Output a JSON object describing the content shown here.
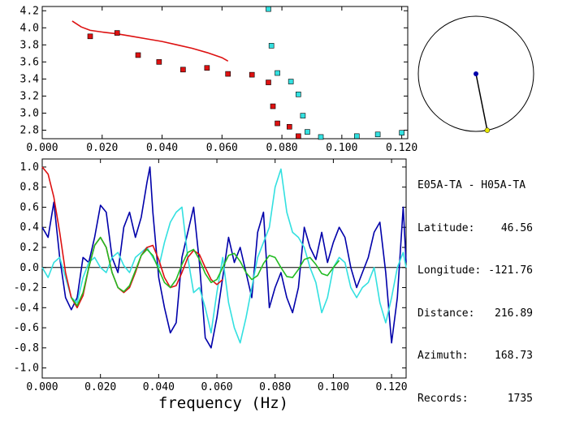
{
  "station": {
    "pair": "E05A-TA - H05A-TA",
    "fields": [
      {
        "label": "Latitude:",
        "value": "46.56"
      },
      {
        "label": "Longitude:",
        "value": "-121.76"
      },
      {
        "label": "Distance:",
        "value": "216.89"
      },
      {
        "label": "Azimuth:",
        "value": "168.73"
      },
      {
        "label": "Records:",
        "value": "1735"
      }
    ]
  },
  "colors": {
    "red": "#dd1111",
    "green": "#22bb22",
    "blue": "#0000aa",
    "cyan": "#33e0e0",
    "pivot": "#0000aa",
    "end": "#e6e600"
  },
  "azimuth_dial": {
    "azimuth_deg": 168.73
  },
  "chart_data": [
    {
      "type": "scatter",
      "title": "",
      "xlabel": "",
      "ylabel": "",
      "xlim": [
        0.0,
        0.122
      ],
      "ylim": [
        2.7,
        4.25
      ],
      "x_ticks": [
        "0.000",
        "0.020",
        "0.040",
        "0.060",
        "0.080",
        "0.100",
        "0.120"
      ],
      "x_tick_values": [
        0.0,
        0.02,
        0.04,
        0.06,
        0.08,
        0.1,
        0.12
      ],
      "y_ticks": [
        "2.8",
        "3.0",
        "3.2",
        "3.4",
        "3.6",
        "3.8",
        "4.0",
        "4.2"
      ],
      "y_tick_values": [
        2.8,
        3.0,
        3.2,
        3.4,
        3.6,
        3.8,
        4.0,
        4.2
      ],
      "series": [
        {
          "kind": "line",
          "color_key": "red",
          "x": [
            0.01,
            0.013,
            0.016,
            0.02,
            0.025,
            0.03,
            0.035,
            0.04,
            0.045,
            0.05,
            0.055,
            0.06,
            0.062
          ],
          "y": [
            4.08,
            4.01,
            3.97,
            3.95,
            3.93,
            3.9,
            3.87,
            3.84,
            3.8,
            3.76,
            3.71,
            3.65,
            3.61
          ]
        },
        {
          "kind": "markers",
          "color_key": "red",
          "x": [
            0.016,
            0.025,
            0.032,
            0.039,
            0.047,
            0.055,
            0.062,
            0.07,
            0.0755,
            0.077,
            0.0785,
            0.0825,
            0.0855
          ],
          "y": [
            3.9,
            3.94,
            3.68,
            3.6,
            3.51,
            3.53,
            3.46,
            3.45,
            3.36,
            3.08,
            2.88,
            2.84,
            2.73
          ]
        },
        {
          "kind": "markers",
          "color_key": "cyan",
          "x": [
            0.0755,
            0.0765,
            0.0785,
            0.083,
            0.0855,
            0.087,
            0.0885,
            0.093,
            0.105,
            0.112,
            0.12
          ],
          "y": [
            4.22,
            3.79,
            3.47,
            3.37,
            3.22,
            2.97,
            2.78,
            2.72,
            2.73,
            2.75,
            2.77
          ]
        }
      ]
    },
    {
      "type": "line",
      "title": "",
      "xlabel": "frequency (Hz)",
      "ylabel": "",
      "xlim": [
        0.0,
        0.125
      ],
      "ylim": [
        -1.1,
        1.08
      ],
      "x_ticks": [
        "0.000",
        "0.020",
        "0.040",
        "0.060",
        "0.080",
        "0.100",
        "0.120"
      ],
      "x_tick_values": [
        0.0,
        0.02,
        0.04,
        0.06,
        0.08,
        0.1,
        0.12
      ],
      "y_ticks": [
        "1.0",
        "0.8",
        "0.6",
        "0.4",
        "0.2",
        "0.0",
        "-0.2",
        "-0.4",
        "-0.6",
        "-0.8",
        "-1.0"
      ],
      "y_tick_values": [
        1.0,
        0.8,
        0.6,
        0.4,
        0.2,
        0.0,
        -0.2,
        -0.4,
        -0.6,
        -0.8,
        -1.0
      ],
      "zero_line": true,
      "series": [
        {
          "color_key": "blue",
          "x": [
            0.0,
            0.002,
            0.004,
            0.006,
            0.008,
            0.01,
            0.012,
            0.014,
            0.016,
            0.018,
            0.02,
            0.022,
            0.024,
            0.026,
            0.028,
            0.03,
            0.032,
            0.034,
            0.036,
            0.037,
            0.038,
            0.04,
            0.042,
            0.044,
            0.046,
            0.048,
            0.05,
            0.052,
            0.054,
            0.056,
            0.058,
            0.06,
            0.062,
            0.064,
            0.066,
            0.068,
            0.07,
            0.072,
            0.074,
            0.076,
            0.078,
            0.08,
            0.082,
            0.084,
            0.086,
            0.088,
            0.09,
            0.092,
            0.094,
            0.096,
            0.098,
            0.1,
            0.102,
            0.104,
            0.106,
            0.108,
            0.11,
            0.112,
            0.114,
            0.116,
            0.118,
            0.12,
            0.122,
            0.124,
            0.125
          ],
          "y": [
            0.4,
            0.3,
            0.65,
            0.1,
            -0.3,
            -0.42,
            -0.3,
            0.1,
            0.05,
            0.3,
            0.62,
            0.55,
            0.1,
            -0.05,
            0.4,
            0.55,
            0.3,
            0.5,
            0.85,
            1.0,
            0.55,
            -0.1,
            -0.4,
            -0.65,
            -0.55,
            0.1,
            0.35,
            0.6,
            0.05,
            -0.7,
            -0.8,
            -0.5,
            -0.1,
            0.3,
            0.05,
            0.2,
            -0.05,
            -0.3,
            0.35,
            0.55,
            -0.4,
            -0.2,
            -0.05,
            -0.3,
            -0.45,
            -0.2,
            0.4,
            0.2,
            0.08,
            0.35,
            0.05,
            0.25,
            0.4,
            0.3,
            0.0,
            -0.2,
            -0.05,
            0.1,
            0.35,
            0.45,
            -0.05,
            -0.75,
            -0.3,
            0.6,
            0.05
          ]
        },
        {
          "color_key": "cyan",
          "x": [
            0.0,
            0.002,
            0.004,
            0.006,
            0.008,
            0.01,
            0.012,
            0.014,
            0.016,
            0.018,
            0.02,
            0.022,
            0.024,
            0.026,
            0.028,
            0.03,
            0.032,
            0.034,
            0.036,
            0.038,
            0.04,
            0.042,
            0.044,
            0.046,
            0.048,
            0.05,
            0.052,
            0.054,
            0.056,
            0.058,
            0.06,
            0.062,
            0.064,
            0.066,
            0.068,
            0.07,
            0.072,
            0.074,
            0.076,
            0.078,
            0.08,
            0.082,
            0.084,
            0.086,
            0.088,
            0.09,
            0.092,
            0.094,
            0.096,
            0.098,
            0.1,
            0.102,
            0.104,
            0.106,
            0.108,
            0.11,
            0.112,
            0.114,
            0.116,
            0.118,
            0.12,
            0.122,
            0.124,
            0.125
          ],
          "y": [
            0.0,
            -0.1,
            0.05,
            0.1,
            -0.1,
            -0.3,
            -0.35,
            -0.1,
            0.05,
            0.1,
            0.0,
            -0.05,
            0.1,
            0.15,
            0.02,
            -0.05,
            0.1,
            0.15,
            0.2,
            0.1,
            0.0,
            0.25,
            0.45,
            0.55,
            0.6,
            0.1,
            -0.25,
            -0.2,
            -0.4,
            -0.65,
            -0.25,
            0.1,
            -0.35,
            -0.6,
            -0.75,
            -0.5,
            -0.2,
            0.1,
            0.25,
            0.4,
            0.8,
            0.98,
            0.55,
            0.35,
            0.3,
            0.2,
            0.0,
            -0.15,
            -0.45,
            -0.3,
            0.0,
            0.1,
            0.05,
            -0.2,
            -0.3,
            -0.2,
            -0.15,
            0.0,
            -0.35,
            -0.55,
            -0.3,
            0.0,
            0.15,
            0.0
          ]
        },
        {
          "color_key": "red",
          "x": [
            0.0,
            0.002,
            0.004,
            0.006,
            0.008,
            0.01,
            0.012,
            0.014,
            0.016,
            0.018,
            0.02,
            0.022,
            0.024,
            0.026,
            0.028,
            0.03,
            0.032,
            0.034,
            0.036,
            0.038,
            0.04,
            0.042,
            0.044,
            0.046,
            0.048,
            0.05,
            0.052,
            0.054,
            0.056,
            0.058,
            0.06,
            0.062
          ],
          "y": [
            1.0,
            0.93,
            0.7,
            0.35,
            -0.05,
            -0.3,
            -0.4,
            -0.28,
            0.0,
            0.22,
            0.3,
            0.2,
            -0.05,
            -0.2,
            -0.25,
            -0.2,
            -0.05,
            0.12,
            0.2,
            0.22,
            0.08,
            -0.1,
            -0.2,
            -0.18,
            -0.05,
            0.1,
            0.17,
            0.13,
            0.0,
            -0.12,
            -0.17,
            -0.12
          ]
        },
        {
          "color_key": "green",
          "x": [
            0.01,
            0.012,
            0.014,
            0.016,
            0.018,
            0.02,
            0.022,
            0.024,
            0.026,
            0.028,
            0.03,
            0.032,
            0.034,
            0.036,
            0.038,
            0.04,
            0.042,
            0.044,
            0.046,
            0.048,
            0.05,
            0.052,
            0.054,
            0.056,
            0.058,
            0.06,
            0.062,
            0.064,
            0.066,
            0.068,
            0.07,
            0.072,
            0.074,
            0.076,
            0.078,
            0.08,
            0.082,
            0.084,
            0.086,
            0.088,
            0.09,
            0.092,
            0.094,
            0.096,
            0.098,
            0.1,
            0.102
          ],
          "y": [
            -0.3,
            -0.38,
            -0.25,
            0.0,
            0.22,
            0.3,
            0.2,
            -0.05,
            -0.2,
            -0.24,
            -0.18,
            -0.03,
            0.12,
            0.18,
            0.12,
            -0.02,
            -0.15,
            -0.2,
            -0.12,
            0.03,
            0.15,
            0.18,
            0.08,
            -0.06,
            -0.15,
            -0.12,
            0.0,
            0.12,
            0.14,
            0.06,
            -0.05,
            -0.12,
            -0.08,
            0.04,
            0.12,
            0.1,
            0.0,
            -0.09,
            -0.1,
            -0.02,
            0.08,
            0.1,
            0.03,
            -0.06,
            -0.08,
            0.0,
            0.07
          ]
        }
      ]
    }
  ]
}
